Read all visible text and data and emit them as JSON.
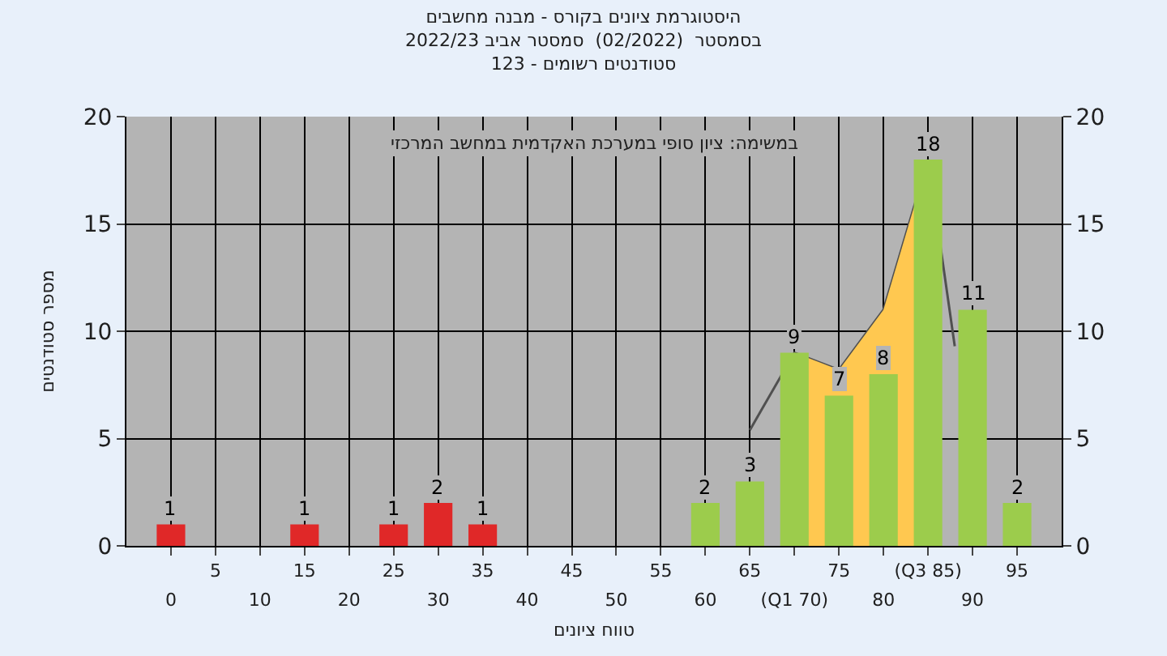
{
  "chart_data": {
    "type": "bar",
    "title": "היסטוגרמת ציונים בקורס - מבנה מחשבים\nבסמסטר  (02/2022)  סמסטר אביב 2022/23\nסטודנטים רשומים - 123",
    "xlabel": "טווח ציונים",
    "ylabel": "מספר סטודנטים",
    "annotations": [
      "במשימה: ציון סופי במערכת האקדמית במחשב המרכזי"
    ],
    "x": [
      0,
      15,
      25,
      30,
      35,
      60,
      65,
      70,
      75,
      80,
      85,
      90,
      95
    ],
    "series": [
      {
        "type": "line",
        "color": "#505050",
        "x": [
          65,
          70,
          75,
          80,
          85,
          88
        ],
        "values": [
          5.4,
          9,
          8.2,
          11,
          18,
          9.3
        ]
      },
      {
        "type": "area",
        "color": "#ffc850",
        "x": [
          70,
          75,
          80,
          85
        ],
        "values": [
          9,
          8.2,
          11,
          18
        ]
      },
      {
        "axis": "y2",
        "values": [
          1,
          1,
          1,
          2,
          1,
          2,
          3,
          9,
          7,
          8,
          18,
          11,
          2
        ],
        "value_labels": [
          "1",
          "1",
          "1",
          "2",
          "1",
          "2",
          "3",
          "9",
          "7",
          "8",
          "18",
          "11",
          "2"
        ],
        "colors": [
          "#e02828",
          "#e02828",
          "#e02828",
          "#e02828",
          "#e02828",
          "#9ccc4c",
          "#9ccc4c",
          "#9ccc4c",
          "#9ccc4c",
          "#9ccc4c",
          "#9ccc4c",
          "#9ccc4c",
          "#9ccc4c"
        ]
      }
    ],
    "xlim": [
      -5,
      100
    ],
    "xticks": [
      5,
      15,
      25,
      35,
      45,
      55,
      65,
      75,
      {
        "value": 85,
        "label": "(Q3 85)"
      },
      95
    ],
    "x2lim": [
      -5,
      100
    ],
    "x2ticks": [
      0,
      10,
      20,
      30,
      40,
      50,
      60,
      {
        "value": 70,
        "label": "(Q1 70)"
      },
      80,
      90
    ],
    "ylim": [
      0,
      20
    ],
    "yticks": [
      0,
      5,
      10,
      15,
      20
    ],
    "y2lim": [
      0,
      20
    ],
    "y2ticks": [
      0,
      5,
      10,
      15,
      20
    ],
    "grid": true,
    "legend": false
  }
}
